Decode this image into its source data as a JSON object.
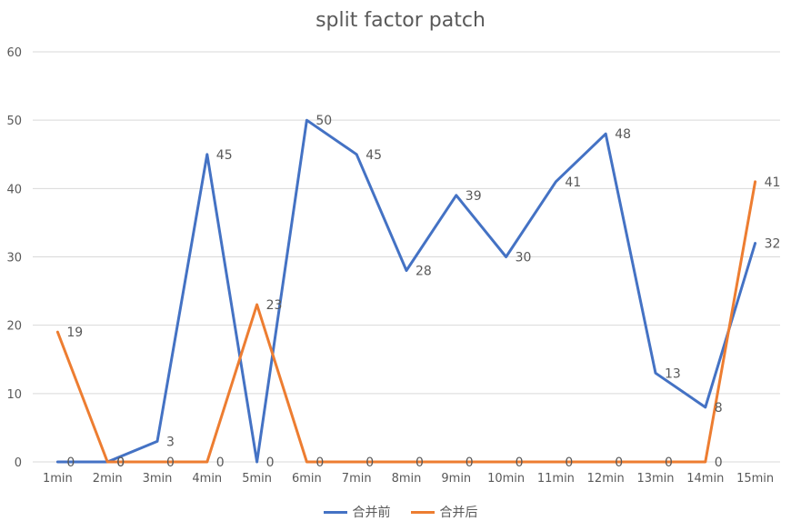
{
  "chart_data": {
    "type": "line",
    "title": "split factor patch",
    "xlabel": "",
    "ylabel": "",
    "categories": [
      "1min",
      "2min",
      "3min",
      "4min",
      "5min",
      "6min",
      "7min",
      "8min",
      "9min",
      "10min",
      "11min",
      "12min",
      "13min",
      "14min",
      "15min"
    ],
    "ylim": [
      0,
      60
    ],
    "yticks": [
      0,
      10,
      20,
      30,
      40,
      50,
      60
    ],
    "grid": true,
    "legend": "bottom",
    "series": [
      {
        "name": "合并前",
        "color": "#4472c4",
        "values": [
          0,
          0,
          3,
          45,
          0,
          50,
          45,
          28,
          39,
          30,
          41,
          48,
          13,
          8,
          32
        ]
      },
      {
        "name": "合并后",
        "color": "#ed7d31",
        "values": [
          19,
          0,
          0,
          0,
          23,
          0,
          0,
          0,
          0,
          0,
          0,
          0,
          0,
          0,
          41
        ]
      }
    ]
  }
}
